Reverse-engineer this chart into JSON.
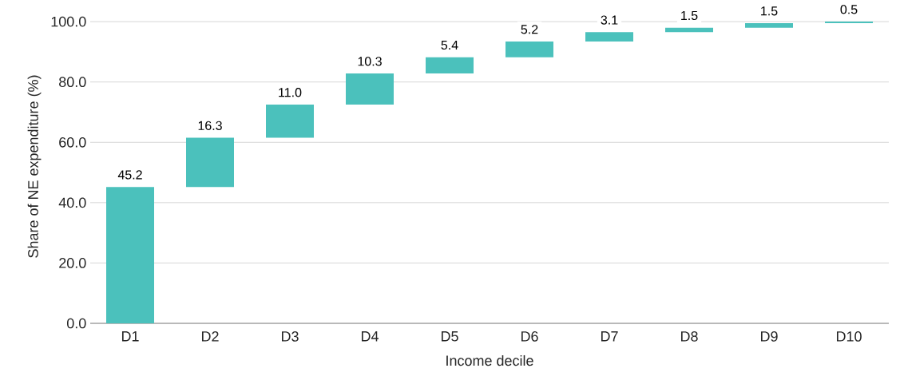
{
  "chart_data": {
    "type": "bar",
    "xlabel": "Income decile",
    "ylabel": "Share of NE expenditure (%)",
    "categories": [
      "D1",
      "D2",
      "D3",
      "D4",
      "D5",
      "D6",
      "D7",
      "D8",
      "D9",
      "D10"
    ],
    "values": [
      45.2,
      16.3,
      11.0,
      10.3,
      5.4,
      5.2,
      3.1,
      1.5,
      1.5,
      0.5
    ],
    "base": [
      0,
      45.2,
      61.5,
      72.5,
      82.8,
      88.2,
      93.4,
      96.5,
      98.0,
      99.5
    ],
    "value_labels": [
      "45.2",
      "16.3",
      "11.0",
      "10.3",
      "5.4",
      "5.2",
      "3.1",
      "1.5",
      "1.5",
      "0.5"
    ],
    "color": "#4bc1bc",
    "ylim": [
      0,
      104
    ],
    "yticks": [
      {
        "value": 0,
        "label": "0.0"
      },
      {
        "value": 20,
        "label": "20.0"
      },
      {
        "value": 40,
        "label": "40.0"
      },
      {
        "value": 60,
        "label": "60.0"
      },
      {
        "value": 80,
        "label": "80.0"
      },
      {
        "value": 100,
        "label": "100.0"
      }
    ],
    "grid": "y"
  }
}
